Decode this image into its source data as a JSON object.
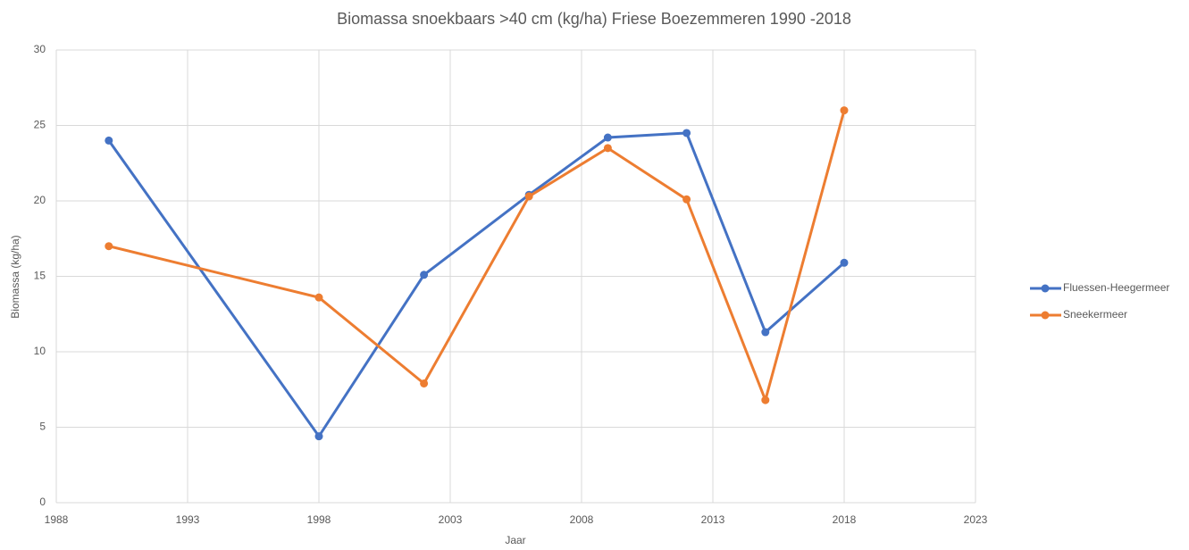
{
  "chart_data": {
    "type": "line",
    "title": "Biomassa snoekbaars >40 cm (kg/ha) Friese Boezemmeren  1990 -2018",
    "xlabel": "Jaar",
    "ylabel": "Biomassa (kg/ha)",
    "x": [
      1990,
      1998,
      2002,
      2006,
      2009,
      2012,
      2015,
      2018
    ],
    "series": [
      {
        "name": "Fluessen-Heegermeer",
        "color": "#4472c4",
        "values": [
          24.0,
          4.4,
          15.1,
          20.4,
          24.2,
          24.5,
          11.3,
          15.9
        ]
      },
      {
        "name": "Sneekermeer",
        "color": "#ed7d31",
        "values": [
          17.0,
          13.6,
          7.9,
          20.3,
          23.5,
          20.1,
          6.8,
          26.0
        ]
      }
    ],
    "xlim": [
      1988,
      2023
    ],
    "xticks": [
      1988,
      1993,
      1998,
      2003,
      2008,
      2013,
      2018,
      2023
    ],
    "ylim": [
      0,
      30
    ],
    "yticks": [
      0,
      5,
      10,
      15,
      20,
      25,
      30
    ],
    "grid": true,
    "legend": "right"
  }
}
